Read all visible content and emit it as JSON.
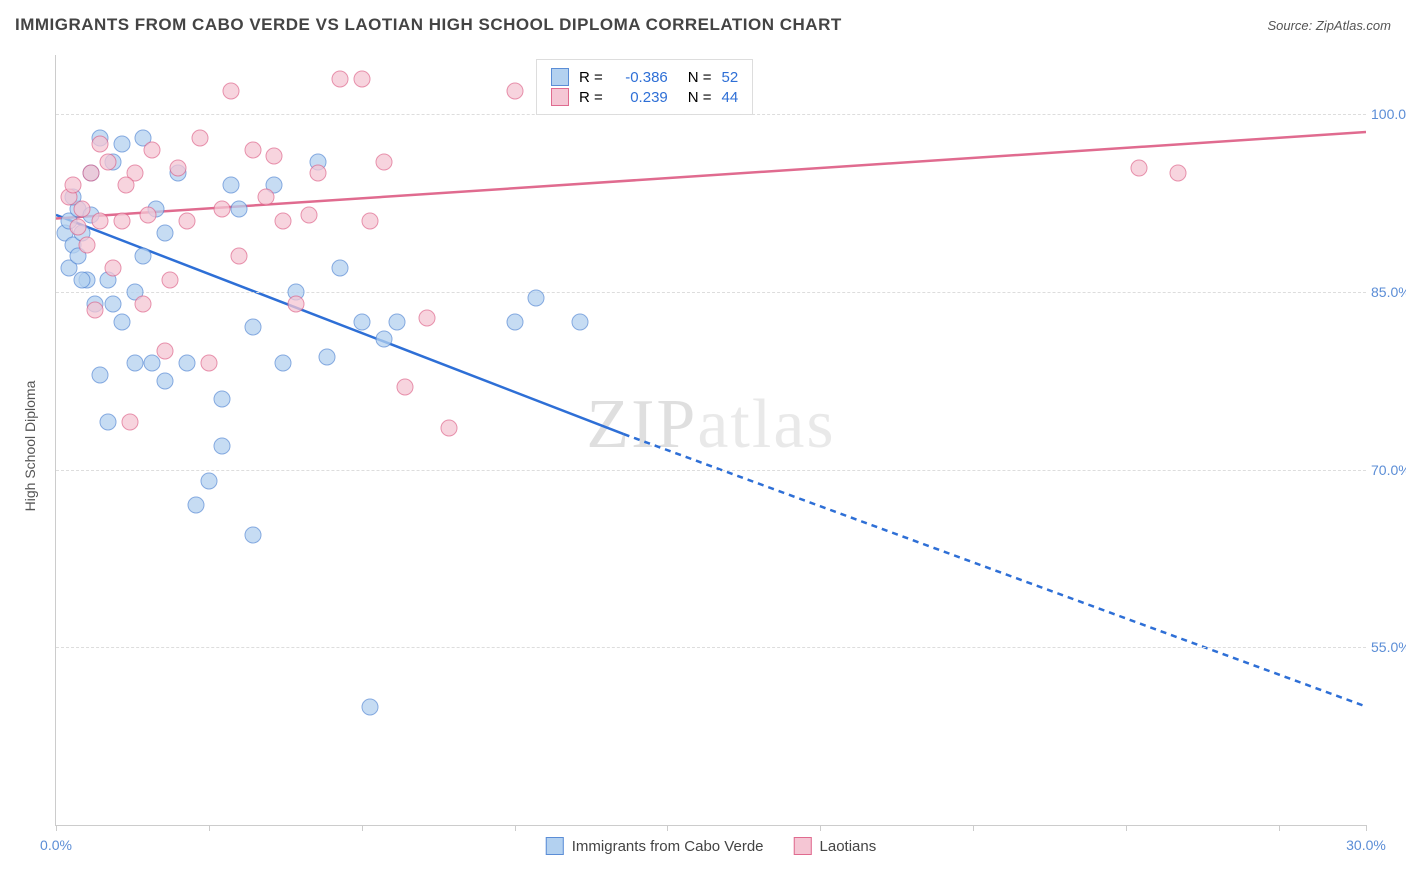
{
  "title": "IMMIGRANTS FROM CABO VERDE VS LAOTIAN HIGH SCHOOL DIPLOMA CORRELATION CHART",
  "source_label": "Source: ",
  "source_name": "ZipAtlas.com",
  "watermark_a": "ZIP",
  "watermark_b": "atlas",
  "ylabel": "High School Diploma",
  "chart": {
    "type": "scatter",
    "xlim": [
      0,
      30
    ],
    "ylim": [
      40,
      105
    ],
    "x_ticks": [
      0,
      3.5,
      7,
      10.5,
      14,
      17.5,
      21,
      24.5,
      28,
      30
    ],
    "x_tick_labels": {
      "0": "0.0%",
      "30": "30.0%"
    },
    "y_ticks": [
      55,
      70,
      85,
      100
    ],
    "y_tick_labels": [
      "55.0%",
      "70.0%",
      "85.0%",
      "100.0%"
    ],
    "background": "#ffffff",
    "grid_color": "#dddddd",
    "point_radius": 7.5,
    "series": [
      {
        "key": "cabo",
        "label": "Immigrants from Cabo Verde",
        "fill": "#b3d1f0",
        "stroke": "#5b8dd6",
        "line_color": "#2e6fd6",
        "R": "-0.386",
        "N": "52",
        "trend": {
          "x1": 0,
          "y1": 91.5,
          "x2": 13,
          "y2": 73,
          "dash_x2": 30,
          "dash_y2": 50
        },
        "points": [
          [
            0.2,
            90
          ],
          [
            0.3,
            91
          ],
          [
            0.4,
            89
          ],
          [
            0.5,
            92
          ],
          [
            0.3,
            87
          ],
          [
            0.6,
            90
          ],
          [
            0.8,
            91.5
          ],
          [
            0.4,
            93
          ],
          [
            0.5,
            88
          ],
          [
            0.7,
            86
          ],
          [
            1.0,
            98
          ],
          [
            1.3,
            96
          ],
          [
            1.5,
            97.5
          ],
          [
            0.8,
            95
          ],
          [
            1.2,
            86
          ],
          [
            1.3,
            84
          ],
          [
            1.8,
            85
          ],
          [
            2.0,
            98
          ],
          [
            2.2,
            79
          ],
          [
            1.5,
            82.5
          ],
          [
            2.3,
            92
          ],
          [
            2.5,
            90
          ],
          [
            2.8,
            95
          ],
          [
            3.0,
            79
          ],
          [
            3.2,
            67
          ],
          [
            3.5,
            69
          ],
          [
            3.8,
            76
          ],
          [
            4.0,
            94
          ],
          [
            4.2,
            92
          ],
          [
            4.5,
            82
          ],
          [
            5.0,
            94
          ],
          [
            5.2,
            79
          ],
          [
            5.5,
            85
          ],
          [
            6.0,
            96
          ],
          [
            6.2,
            79.5
          ],
          [
            6.5,
            87
          ],
          [
            7.0,
            82.5
          ],
          [
            7.2,
            50
          ],
          [
            7.5,
            81
          ],
          [
            7.8,
            82.5
          ],
          [
            1.0,
            78
          ],
          [
            1.2,
            74
          ],
          [
            3.8,
            72
          ],
          [
            4.5,
            64.5
          ],
          [
            11.0,
            84.5
          ],
          [
            10.5,
            82.5
          ],
          [
            12.0,
            82.5
          ],
          [
            2.0,
            88
          ],
          [
            0.6,
            86
          ],
          [
            1.8,
            79
          ],
          [
            2.5,
            77.5
          ],
          [
            0.9,
            84
          ]
        ]
      },
      {
        "key": "lao",
        "label": "Laotians",
        "fill": "#f5c6d4",
        "stroke": "#e06b8f",
        "line_color": "#e06b8f",
        "R": "0.239",
        "N": "44",
        "trend": {
          "x1": 0,
          "y1": 91.2,
          "x2": 30,
          "y2": 98.5
        },
        "points": [
          [
            0.3,
            93
          ],
          [
            0.4,
            94
          ],
          [
            0.6,
            92
          ],
          [
            0.8,
            95
          ],
          [
            1.0,
            91
          ],
          [
            1.2,
            96
          ],
          [
            1.5,
            91
          ],
          [
            0.5,
            90.5
          ],
          [
            0.7,
            89
          ],
          [
            1.3,
            87
          ],
          [
            1.8,
            95
          ],
          [
            2.0,
            84
          ],
          [
            2.2,
            97
          ],
          [
            2.5,
            80
          ],
          [
            2.8,
            95.5
          ],
          [
            3.0,
            91
          ],
          [
            3.3,
            98
          ],
          [
            3.8,
            92
          ],
          [
            1.0,
            97.5
          ],
          [
            4.0,
            102
          ],
          [
            4.2,
            88
          ],
          [
            4.5,
            97
          ],
          [
            5.0,
            96.5
          ],
          [
            5.2,
            91
          ],
          [
            5.5,
            84
          ],
          [
            5.8,
            91.5
          ],
          [
            6.0,
            95
          ],
          [
            6.5,
            103
          ],
          [
            7.0,
            103
          ],
          [
            7.5,
            96
          ],
          [
            8.0,
            77
          ],
          [
            7.2,
            91
          ],
          [
            8.5,
            82.8
          ],
          [
            9.0,
            73.5
          ],
          [
            10.5,
            102
          ],
          [
            1.6,
            94
          ],
          [
            2.1,
            91.5
          ],
          [
            2.6,
            86
          ],
          [
            3.5,
            79
          ],
          [
            0.9,
            83.5
          ],
          [
            1.7,
            74
          ],
          [
            24.8,
            95.5
          ],
          [
            25.7,
            95
          ],
          [
            4.8,
            93
          ]
        ]
      }
    ]
  },
  "legend_box": {
    "R_label": "R =",
    "N_label": "N ="
  }
}
